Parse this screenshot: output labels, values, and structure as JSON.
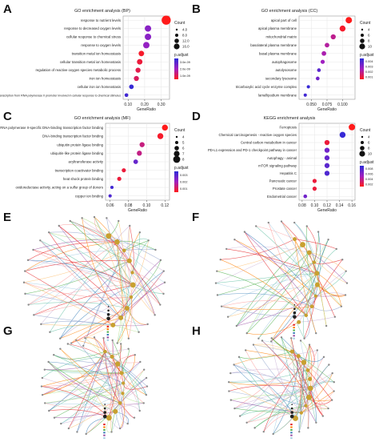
{
  "figure": {
    "panel_letters": [
      "A",
      "B",
      "C",
      "D",
      "E",
      "F",
      "G",
      "H"
    ]
  },
  "colors": {
    "low": "#2b2bd8",
    "high": "#ff1a1a",
    "grid": "#e6e6e6",
    "axis": "#444444"
  },
  "chart_data": [
    {
      "panel": "A",
      "type": "scatter",
      "title": "GO enrichment analysis (BP)",
      "xlabel": "GeneRatio",
      "ylabel": "",
      "xlim": [
        0.07,
        0.35
      ],
      "xticks": [
        "0.10",
        "0.20",
        "0.30"
      ],
      "xtick_values": [
        0.1,
        0.2,
        0.3
      ],
      "categories": [
        "response to nutrient levels",
        "response to decreased oxygen levels",
        "cellular response to chemical stress",
        "response to oxygen levels",
        "transition metal ion homeostasis",
        "cellular transition metal ion homeostasis",
        "regulation of reactive oxygen species metabolic process",
        "iron ion homeostasis",
        "cellular iron ion homeostasis",
        "positive regulation of transcription from RNA polymerase II promoter involved in cellular response to chemical stimulus"
      ],
      "x": [
        0.33,
        0.22,
        0.22,
        0.21,
        0.18,
        0.17,
        0.16,
        0.15,
        0.12,
        0.09
      ],
      "size": [
        16,
        10,
        10,
        10,
        8,
        8,
        7,
        7,
        6,
        4
      ],
      "padjust_frac": [
        0.0,
        0.6,
        0.6,
        0.55,
        0.05,
        0.1,
        0.15,
        0.2,
        0.95,
        0.9
      ],
      "legend_count_title": "Count",
      "legend_counts": [
        "4.0",
        "8.0",
        "12.0",
        "16.0"
      ],
      "legend_color_title": "p.adjust",
      "legend_color_ticks": [
        "1.0e-09",
        "2.0e-09",
        "3.0e-09"
      ]
    },
    {
      "panel": "B",
      "type": "scatter",
      "title": "GO enrichment analysis (CC)",
      "xlabel": "GeneRatio",
      "ylabel": "",
      "xlim": [
        0.03,
        0.12
      ],
      "xticks": [
        "0.050",
        "0.075",
        "0.100"
      ],
      "xtick_values": [
        0.05,
        0.075,
        0.1
      ],
      "categories": [
        "apical part of cell",
        "apical plasma membrane",
        "mitochondrial matrix",
        "basolateral plasma membrane",
        "basal plasma membrane",
        "autophagosome",
        "autolysosome",
        "secondary lysosome",
        "tricarboxylic acid cycle enzyme complex",
        "lamellipodium membrane"
      ],
      "x": [
        0.11,
        0.1,
        0.085,
        0.075,
        0.07,
        0.068,
        0.062,
        0.06,
        0.045,
        0.04
      ],
      "size": [
        10,
        9,
        7,
        6,
        6,
        5,
        4,
        4,
        3,
        3
      ],
      "padjust_frac": [
        0.0,
        0.05,
        0.35,
        0.4,
        0.45,
        0.5,
        0.8,
        0.7,
        0.95,
        0.9
      ],
      "legend_count_title": "Count",
      "legend_counts": [
        "4",
        "6",
        "8",
        "10"
      ],
      "legend_color_title": "p.adjust",
      "legend_color_ticks": [
        "0.001",
        "0.002",
        "0.003",
        "0.004"
      ]
    },
    {
      "panel": "C",
      "type": "scatter",
      "title": "GO enrichment analysis (MF)",
      "xlabel": "GeneRatio",
      "ylabel": "",
      "xlim": [
        0.055,
        0.125
      ],
      "xticks": [
        "0.06",
        "0.08",
        "0.10",
        "0.12"
      ],
      "xtick_values": [
        0.06,
        0.08,
        0.1,
        0.12
      ],
      "categories": [
        "RNA polymerase II-specific DNA-binding transcription factor binding",
        "DNA-binding transcription factor binding",
        "ubiquitin protein ligase binding",
        "ubiquitin-like protein ligase binding",
        "acyltransferase activity",
        "transcription coactivator binding",
        "heat shock protein binding",
        "oxidoreductase activity, acting on a sulfur group of donors",
        "copper ion binding"
      ],
      "x": [
        0.12,
        0.115,
        0.095,
        0.092,
        0.088,
        0.075,
        0.07,
        0.062,
        0.06
      ],
      "size": [
        9,
        9,
        7,
        7,
        6,
        5,
        5,
        3,
        3
      ],
      "padjust_frac": [
        0.0,
        0.05,
        0.3,
        0.32,
        0.75,
        0.1,
        0.1,
        0.9,
        0.85
      ],
      "legend_count_title": "Count",
      "legend_counts": [
        "4",
        "5",
        "6",
        "7",
        "8"
      ],
      "legend_color_title": "p.adjust",
      "legend_color_ticks": [
        "0.001",
        "0.002",
        "0.003"
      ]
    },
    {
      "panel": "D",
      "type": "scatter",
      "title": "KEGG enrichment analysis",
      "xlabel": "GeneRatio",
      "ylabel": "",
      "xlim": [
        0.075,
        0.165
      ],
      "xticks": [
        "0.08",
        "0.10",
        "0.12",
        "0.14",
        "0.16"
      ],
      "xtick_values": [
        0.08,
        0.1,
        0.12,
        0.14,
        0.16
      ],
      "categories": [
        "Ferroptosis",
        "Chemical carcinogenesis - reactive oxygen species",
        "Central carbon metabolism in cancer",
        "PD-L1 expression and PD-1 checkpoint pathway in cancer",
        "Autophagy - animal",
        "mTOR signaling pathway",
        "Hepatitis C",
        "Pancreatic cancer",
        "Prostate cancer",
        "Endometrial cancer"
      ],
      "x": [
        0.16,
        0.145,
        0.12,
        0.12,
        0.12,
        0.12,
        0.12,
        0.1,
        0.1,
        0.085
      ],
      "size": [
        10,
        9,
        7,
        7,
        7,
        7,
        7,
        5,
        5,
        4
      ],
      "padjust_frac": [
        0.0,
        0.95,
        0.1,
        0.7,
        0.75,
        0.8,
        0.85,
        0.1,
        0.1,
        0.7
      ],
      "legend_count_title": "Count",
      "legend_counts": [
        "4",
        "6",
        "8",
        "10"
      ],
      "legend_color_title": "p.adjust",
      "legend_color_ticks": [
        "0.002",
        "0.004",
        "0.006",
        "0.008"
      ]
    }
  ],
  "cnet": [
    {
      "panel": "E",
      "spokes": 34,
      "hubs": 10,
      "seed": 3
    },
    {
      "panel": "F",
      "spokes": 30,
      "hubs": 10,
      "seed": 7
    },
    {
      "panel": "G",
      "spokes": 34,
      "hubs": 9,
      "seed": 11
    },
    {
      "panel": "H",
      "spokes": 32,
      "hubs": 10,
      "seed": 19
    }
  ]
}
